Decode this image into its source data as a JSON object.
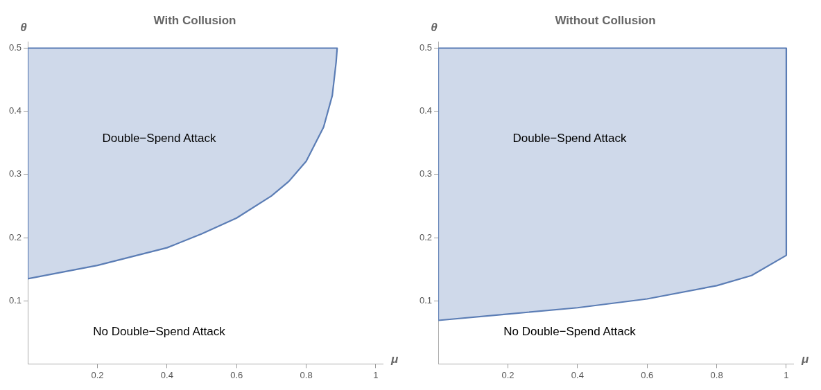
{
  "chart_data": [
    {
      "type": "area",
      "title": "With Collusion",
      "xlabel": "μ",
      "ylabel": "θ",
      "xlim": [
        0,
        1.02
      ],
      "ylim": [
        0,
        0.51
      ],
      "xticks": [
        0.2,
        0.4,
        0.6,
        0.8,
        1.0
      ],
      "yticks": [
        0.1,
        0.2,
        0.3,
        0.4,
        0.5
      ],
      "legend": false,
      "marker": "none",
      "series": [
        {
          "color": "#5b7db5",
          "x": [
            0,
            0,
            0.2,
            0.4,
            0.5,
            0.6,
            0.7,
            0.75,
            0.8,
            0.85,
            0.875,
            0.886,
            0.889,
            0
          ],
          "values": [
            0.5,
            0.135,
            0.156,
            0.184,
            0.206,
            0.231,
            0.266,
            0.289,
            0.321,
            0.375,
            0.425,
            0.478,
            0.5,
            0.5
          ]
        }
      ],
      "annotations": [
        "Double−Spend Attack",
        "No Double−Spend Attack"
      ]
    },
    {
      "type": "area",
      "title": "Without Collusion",
      "xlabel": "μ",
      "ylabel": "θ",
      "xlim": [
        0,
        1.02
      ],
      "ylim": [
        0,
        0.51
      ],
      "xticks": [
        0.2,
        0.4,
        0.6,
        0.8,
        1.0
      ],
      "yticks": [
        0.1,
        0.2,
        0.3,
        0.4,
        0.5
      ],
      "legend": false,
      "marker": "none",
      "series": [
        {
          "color": "#5b7db5",
          "x": [
            0,
            0,
            0.2,
            0.4,
            0.6,
            0.8,
            0.9,
            1.0,
            1.0,
            0
          ],
          "values": [
            0.5,
            0.069,
            0.079,
            0.089,
            0.103,
            0.124,
            0.14,
            0.172,
            0.5,
            0.5
          ]
        }
      ],
      "annotations": [
        "Double−Spend Attack",
        "No Double−Spend Attack"
      ]
    }
  ]
}
